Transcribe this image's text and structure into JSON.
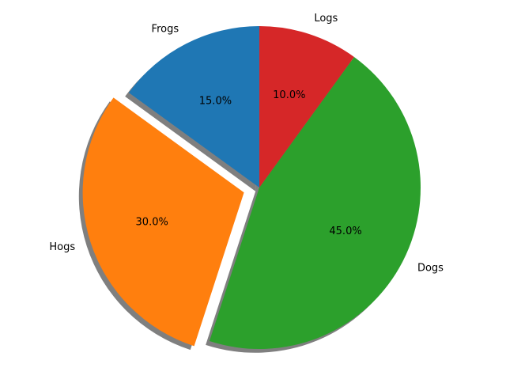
{
  "chart_data": {
    "type": "pie",
    "categories": [
      "Frogs",
      "Hogs",
      "Dogs",
      "Logs"
    ],
    "values": [
      15,
      30,
      45,
      10
    ],
    "value_labels": [
      "15.0%",
      "30.0%",
      "45.0%",
      "10.0%"
    ],
    "colors": [
      "#1f77b4",
      "#ff7f0e",
      "#2ca02c",
      "#d62728"
    ],
    "explode": [
      0,
      0.1,
      0,
      0
    ],
    "startangle": 90,
    "shadow": true
  }
}
